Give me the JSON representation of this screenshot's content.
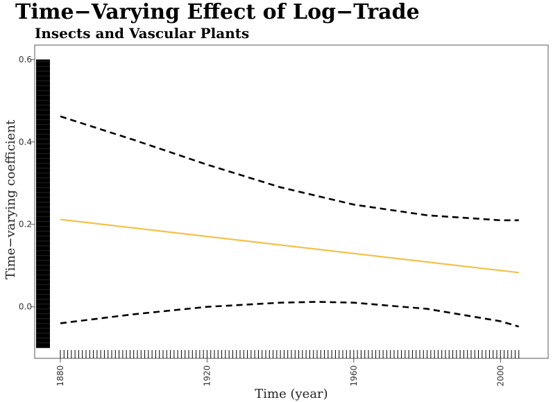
{
  "chart_data": {
    "type": "line",
    "title": "Time−Varying Effect of Log−Trade",
    "subtitle": "Insects and Vascular Plants",
    "xlabel": "Time (year)",
    "ylabel": "Time−varying coefficient",
    "xlim": [
      1873,
      2013
    ],
    "ylim": [
      -0.125,
      0.635
    ],
    "x_ticks": [
      1880,
      1920,
      1960,
      2000
    ],
    "x_tick_labels": [
      "1880",
      "1920",
      "1960",
      "2000"
    ],
    "y_ticks": [
      0.0,
      0.2,
      0.4,
      0.6
    ],
    "y_tick_labels": [
      "0.0",
      "0.2",
      "0.4",
      "0.6"
    ],
    "series": [
      {
        "name": "estimate",
        "style": "solid",
        "color": "#f5c04a",
        "x": [
          1880,
          2005
        ],
        "y": [
          0.212,
          0.083
        ]
      },
      {
        "name": "upper-bound",
        "style": "dashed",
        "color": "#000000",
        "x": [
          1880,
          1900,
          1920,
          1940,
          1960,
          1980,
          2000,
          2005
        ],
        "y": [
          0.462,
          0.405,
          0.345,
          0.29,
          0.248,
          0.222,
          0.21,
          0.21
        ]
      },
      {
        "name": "lower-bound",
        "style": "dashed",
        "color": "#000000",
        "x": [
          1880,
          1900,
          1920,
          1940,
          1950,
          1960,
          1980,
          2000,
          2005
        ],
        "y": [
          -0.04,
          -0.018,
          0.0,
          0.01,
          0.012,
          0.01,
          -0.005,
          -0.035,
          -0.048
        ]
      }
    ],
    "x_rug": {
      "from": 1880,
      "to": 2005,
      "step": 1
    },
    "y_rug": {
      "from": -0.1,
      "to": 0.6
    }
  }
}
